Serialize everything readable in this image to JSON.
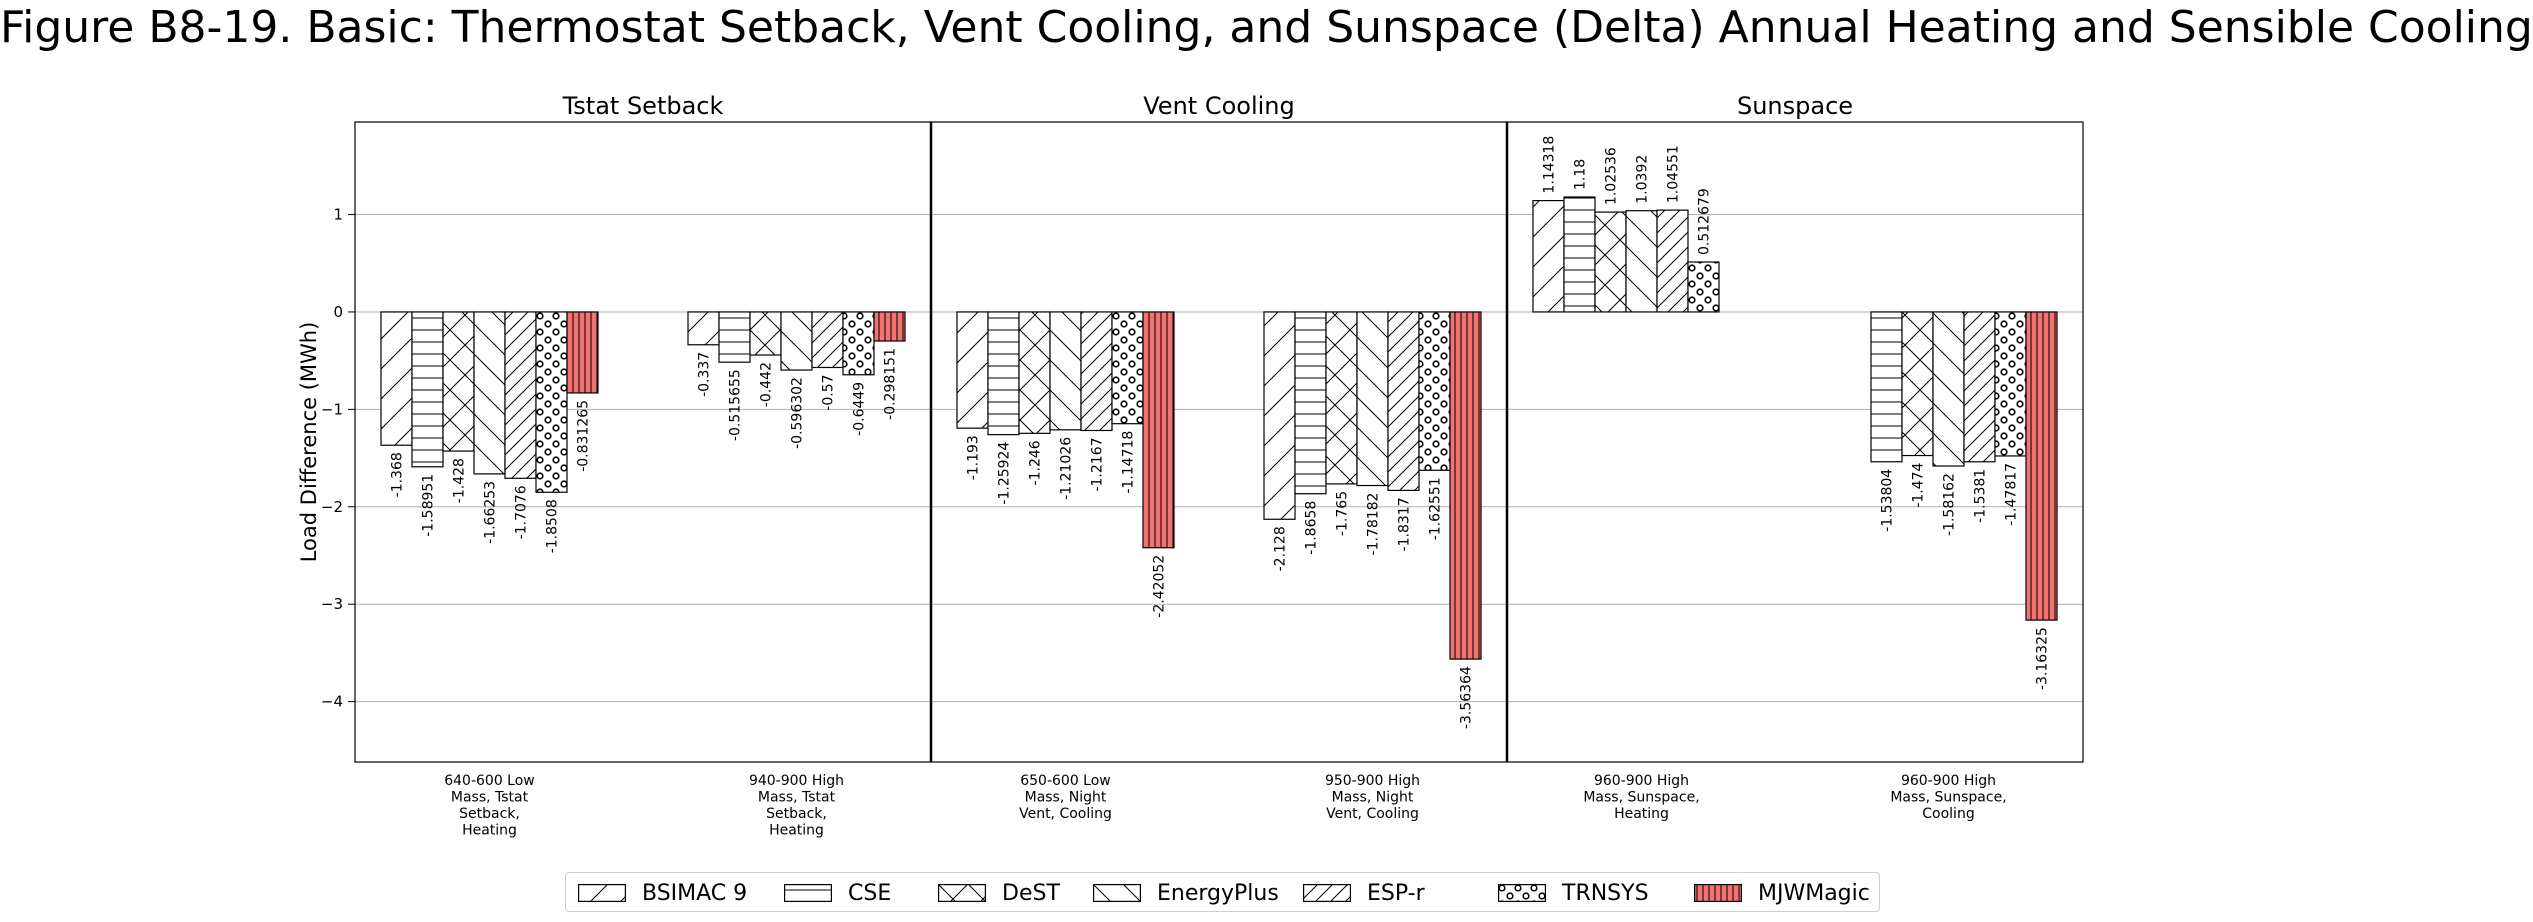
{
  "chart_data": {
    "type": "bar",
    "title": "Figure B8-19. Basic: Thermostat Setback, Vent Cooling, and Sunspace (Delta) Annual Heating and Sensible Cooling",
    "ylabel": "Load Difference (MWh)",
    "ylim": [
      -4.62,
      1.95
    ],
    "yticks": [
      1,
      0,
      -1,
      -2,
      -3,
      -4
    ],
    "ytick_labels": [
      "1",
      "0",
      "−1",
      "−2",
      "−3",
      "−4"
    ],
    "grid": "horizontal",
    "legend_position": "bottom-center",
    "panels": [
      {
        "title": "Tstat Setback",
        "categories": [
          "640-600 Low Mass, Tstat Setback, Heating",
          "940-900 High Mass, Tstat Setback, Heating"
        ]
      },
      {
        "title": "Vent Cooling",
        "categories": [
          "650-600 Low Mass, Night Vent, Cooling",
          "950-900 High Mass, Night Vent, Cooling"
        ]
      },
      {
        "title": "Sunspace",
        "categories": [
          "960-900 High Mass, Sunspace, Heating",
          "960-900 High Mass, Sunspace, Cooling"
        ]
      }
    ],
    "category_labels": [
      [
        "640-600 Low",
        "Mass, Tstat",
        "Setback,",
        "Heating"
      ],
      [
        "940-900 High",
        "Mass, Tstat",
        "Setback,",
        "Heating"
      ],
      [
        "650-600 Low",
        "Mass, Night",
        "Vent, Cooling"
      ],
      [
        "950-900 High",
        "Mass, Night",
        "Vent, Cooling"
      ],
      [
        "960-900 High",
        "Mass, Sunspace,",
        "Heating"
      ],
      [
        "960-900 High",
        "Mass, Sunspace,",
        "Cooling"
      ]
    ],
    "series": [
      {
        "name": "BSIMAC 9",
        "pattern": "fwd-diag",
        "values": [
          -1.368,
          -0.337,
          -1.193,
          -2.128,
          1.14318,
          null
        ],
        "value_labels": [
          "-1.368",
          "-0.337",
          "-1.193",
          "-2.128",
          "1.14318",
          ""
        ]
      },
      {
        "name": "CSE",
        "pattern": "horizontal",
        "values": [
          -1.58951,
          -0.515655,
          -1.25924,
          -1.8658,
          1.18,
          -1.53804
        ],
        "value_labels": [
          "-1.58951",
          "-0.515655",
          "-1.25924",
          "-1.8658",
          "1.18",
          "-1.53804"
        ]
      },
      {
        "name": "DeST",
        "pattern": "cross",
        "values": [
          -1.428,
          -0.442,
          -1.246,
          -1.765,
          1.02536,
          -1.474
        ],
        "value_labels": [
          "-1.428",
          "-0.442",
          "-1.246",
          "-1.765",
          "1.02536",
          "-1.474"
        ]
      },
      {
        "name": "EnergyPlus",
        "pattern": "back-diag",
        "values": [
          -1.66253,
          -0.596302,
          -1.21026,
          -1.78182,
          1.0392,
          -1.58162
        ],
        "value_labels": [
          "-1.66253",
          "-0.596302",
          "-1.21026",
          "-1.78182",
          "1.0392",
          "-1.58162"
        ]
      },
      {
        "name": "ESP-r",
        "pattern": "dense-diag",
        "values": [
          -1.7076,
          -0.57,
          -1.2167,
          -1.8317,
          1.04551,
          -1.5381
        ],
        "value_labels": [
          "-1.7076",
          "-0.57",
          "-1.2167",
          "-1.8317",
          "1.04551",
          "-1.5381"
        ]
      },
      {
        "name": "TRNSYS",
        "pattern": "circles",
        "values": [
          -1.8508,
          -0.6449,
          -1.14718,
          -1.62551,
          0.512679,
          -1.47817
        ],
        "value_labels": [
          "-1.8508",
          "-0.6449",
          "-1.14718",
          "-1.62551",
          "0.512679",
          "-1.47817"
        ]
      },
      {
        "name": "MJWMagic",
        "pattern": "vertical-red",
        "color": "#f57272",
        "values": [
          -0.831265,
          -0.298151,
          -2.42052,
          -3.56364,
          null,
          -3.16325
        ],
        "value_labels": [
          "-0.831265",
          "-0.298151",
          "-2.42052",
          "-3.56364",
          "",
          "-3.16325"
        ]
      }
    ]
  }
}
